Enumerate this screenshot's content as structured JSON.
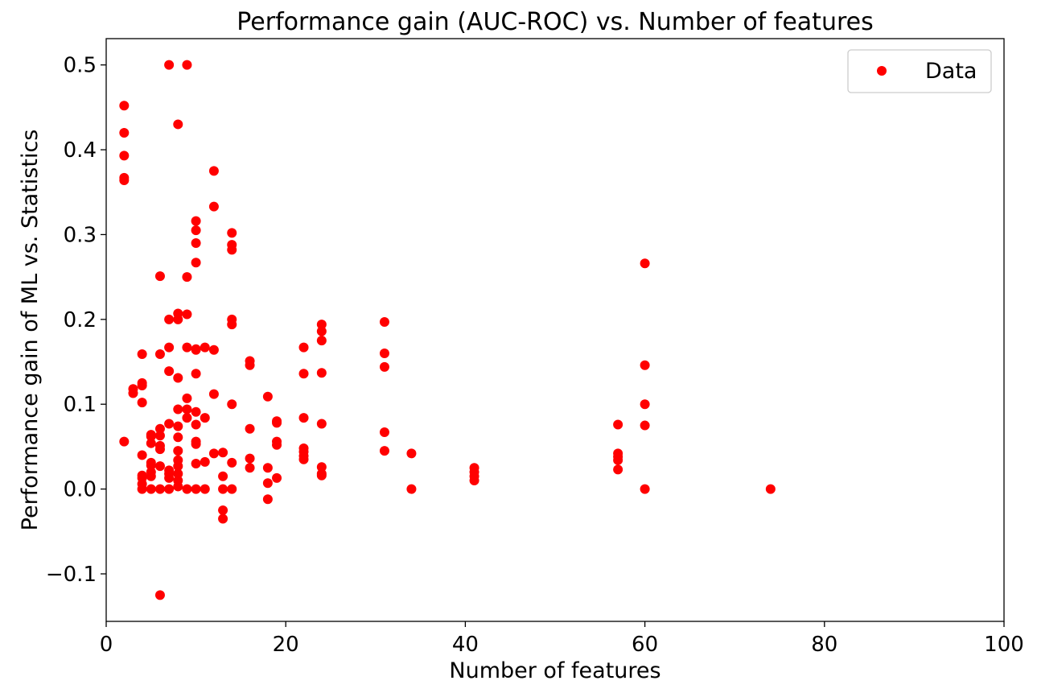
{
  "chart_data": {
    "type": "scatter",
    "title": "Performance gain (AUC-ROC) vs. Number of features",
    "xlabel": "Number of features",
    "ylabel": "Performance gain of ML vs. Statistics",
    "xlim": [
      0,
      100
    ],
    "ylim": [
      -0.156,
      0.531
    ],
    "xticks": [
      0,
      20,
      40,
      60,
      80,
      100
    ],
    "xtick_labels": [
      "0",
      "20",
      "40",
      "60",
      "80",
      "100"
    ],
    "yticks": [
      -0.1,
      0.0,
      0.1,
      0.2,
      0.3,
      0.4,
      0.5
    ],
    "ytick_labels": [
      "−0.1",
      "0.0",
      "0.1",
      "0.2",
      "0.3",
      "0.4",
      "0.5"
    ],
    "grid": false,
    "legend_position": "top-right",
    "series": [
      {
        "name": "Data",
        "color": "#ff0000",
        "marker": "circle",
        "points": [
          [
            2,
            0.452
          ],
          [
            2,
            0.42
          ],
          [
            2,
            0.393
          ],
          [
            2,
            0.367
          ],
          [
            2,
            0.364
          ],
          [
            2,
            0.056
          ],
          [
            3,
            0.118
          ],
          [
            3,
            0.113
          ],
          [
            4,
            0.159
          ],
          [
            4,
            0.125
          ],
          [
            4,
            0.122
          ],
          [
            4,
            0.102
          ],
          [
            4,
            0.04
          ],
          [
            4,
            0.016
          ],
          [
            4,
            0.013
          ],
          [
            4,
            0.006
          ],
          [
            4,
            0.0
          ],
          [
            5,
            0.064
          ],
          [
            5,
            0.062
          ],
          [
            5,
            0.054
          ],
          [
            5,
            0.031
          ],
          [
            5,
            0.028
          ],
          [
            5,
            0.02
          ],
          [
            5,
            0.015
          ],
          [
            5,
            0.0
          ],
          [
            6,
            0.251
          ],
          [
            6,
            0.159
          ],
          [
            6,
            0.071
          ],
          [
            6,
            0.063
          ],
          [
            6,
            0.051
          ],
          [
            6,
            0.047
          ],
          [
            6,
            0.027
          ],
          [
            6,
            0.0
          ],
          [
            6,
            -0.125
          ],
          [
            7,
            0.5
          ],
          [
            7,
            0.2
          ],
          [
            7,
            0.167
          ],
          [
            7,
            0.139
          ],
          [
            7,
            0.077
          ],
          [
            7,
            0.022
          ],
          [
            7,
            0.018
          ],
          [
            7,
            0.013
          ],
          [
            7,
            0.0
          ],
          [
            8,
            0.43
          ],
          [
            8,
            0.207
          ],
          [
            8,
            0.2
          ],
          [
            8,
            0.131
          ],
          [
            8,
            0.094
          ],
          [
            8,
            0.074
          ],
          [
            8,
            0.061
          ],
          [
            8,
            0.045
          ],
          [
            8,
            0.034
          ],
          [
            8,
            0.027
          ],
          [
            8,
            0.018
          ],
          [
            8,
            0.01
          ],
          [
            8,
            0.003
          ],
          [
            9,
            0.5
          ],
          [
            9,
            0.25
          ],
          [
            9,
            0.206
          ],
          [
            9,
            0.167
          ],
          [
            9,
            0.107
          ],
          [
            9,
            0.094
          ],
          [
            9,
            0.084
          ],
          [
            9,
            0.0
          ],
          [
            10,
            0.316
          ],
          [
            10,
            0.305
          ],
          [
            10,
            0.29
          ],
          [
            10,
            0.267
          ],
          [
            10,
            0.165
          ],
          [
            10,
            0.164
          ],
          [
            10,
            0.136
          ],
          [
            10,
            0.091
          ],
          [
            10,
            0.076
          ],
          [
            10,
            0.056
          ],
          [
            10,
            0.053
          ],
          [
            10,
            0.03
          ],
          [
            10,
            0.0
          ],
          [
            11,
            0.167
          ],
          [
            11,
            0.084
          ],
          [
            11,
            0.032
          ],
          [
            11,
            0.0
          ],
          [
            12,
            0.375
          ],
          [
            12,
            0.333
          ],
          [
            12,
            0.164
          ],
          [
            12,
            0.112
          ],
          [
            12,
            0.042
          ],
          [
            13,
            0.043
          ],
          [
            13,
            0.015
          ],
          [
            13,
            0.0
          ],
          [
            13,
            -0.025
          ],
          [
            13,
            -0.035
          ],
          [
            14,
            0.302
          ],
          [
            14,
            0.288
          ],
          [
            14,
            0.282
          ],
          [
            14,
            0.2
          ],
          [
            14,
            0.194
          ],
          [
            14,
            0.1
          ],
          [
            14,
            0.031
          ],
          [
            14,
            0.0
          ],
          [
            16,
            0.151
          ],
          [
            16,
            0.146
          ],
          [
            16,
            0.071
          ],
          [
            16,
            0.036
          ],
          [
            16,
            0.025
          ],
          [
            18,
            0.109
          ],
          [
            18,
            0.025
          ],
          [
            18,
            0.007
          ],
          [
            18,
            -0.012
          ],
          [
            19,
            0.08
          ],
          [
            19,
            0.078
          ],
          [
            19,
            0.056
          ],
          [
            19,
            0.052
          ],
          [
            19,
            0.013
          ],
          [
            22,
            0.167
          ],
          [
            22,
            0.136
          ],
          [
            22,
            0.084
          ],
          [
            22,
            0.048
          ],
          [
            22,
            0.044
          ],
          [
            22,
            0.039
          ],
          [
            22,
            0.035
          ],
          [
            24,
            0.194
          ],
          [
            24,
            0.186
          ],
          [
            24,
            0.175
          ],
          [
            24,
            0.137
          ],
          [
            24,
            0.077
          ],
          [
            24,
            0.026
          ],
          [
            24,
            0.018
          ],
          [
            24,
            0.016
          ],
          [
            31,
            0.197
          ],
          [
            31,
            0.16
          ],
          [
            31,
            0.144
          ],
          [
            31,
            0.067
          ],
          [
            31,
            0.045
          ],
          [
            34,
            0.042
          ],
          [
            34,
            0.0
          ],
          [
            41,
            0.025
          ],
          [
            41,
            0.02
          ],
          [
            41,
            0.015
          ],
          [
            41,
            0.01
          ],
          [
            57,
            0.076
          ],
          [
            57,
            0.042
          ],
          [
            57,
            0.038
          ],
          [
            57,
            0.034
          ],
          [
            57,
            0.023
          ],
          [
            60,
            0.266
          ],
          [
            60,
            0.146
          ],
          [
            60,
            0.1
          ],
          [
            60,
            0.075
          ],
          [
            60,
            0.0
          ],
          [
            74,
            0.0
          ]
        ]
      }
    ]
  }
}
